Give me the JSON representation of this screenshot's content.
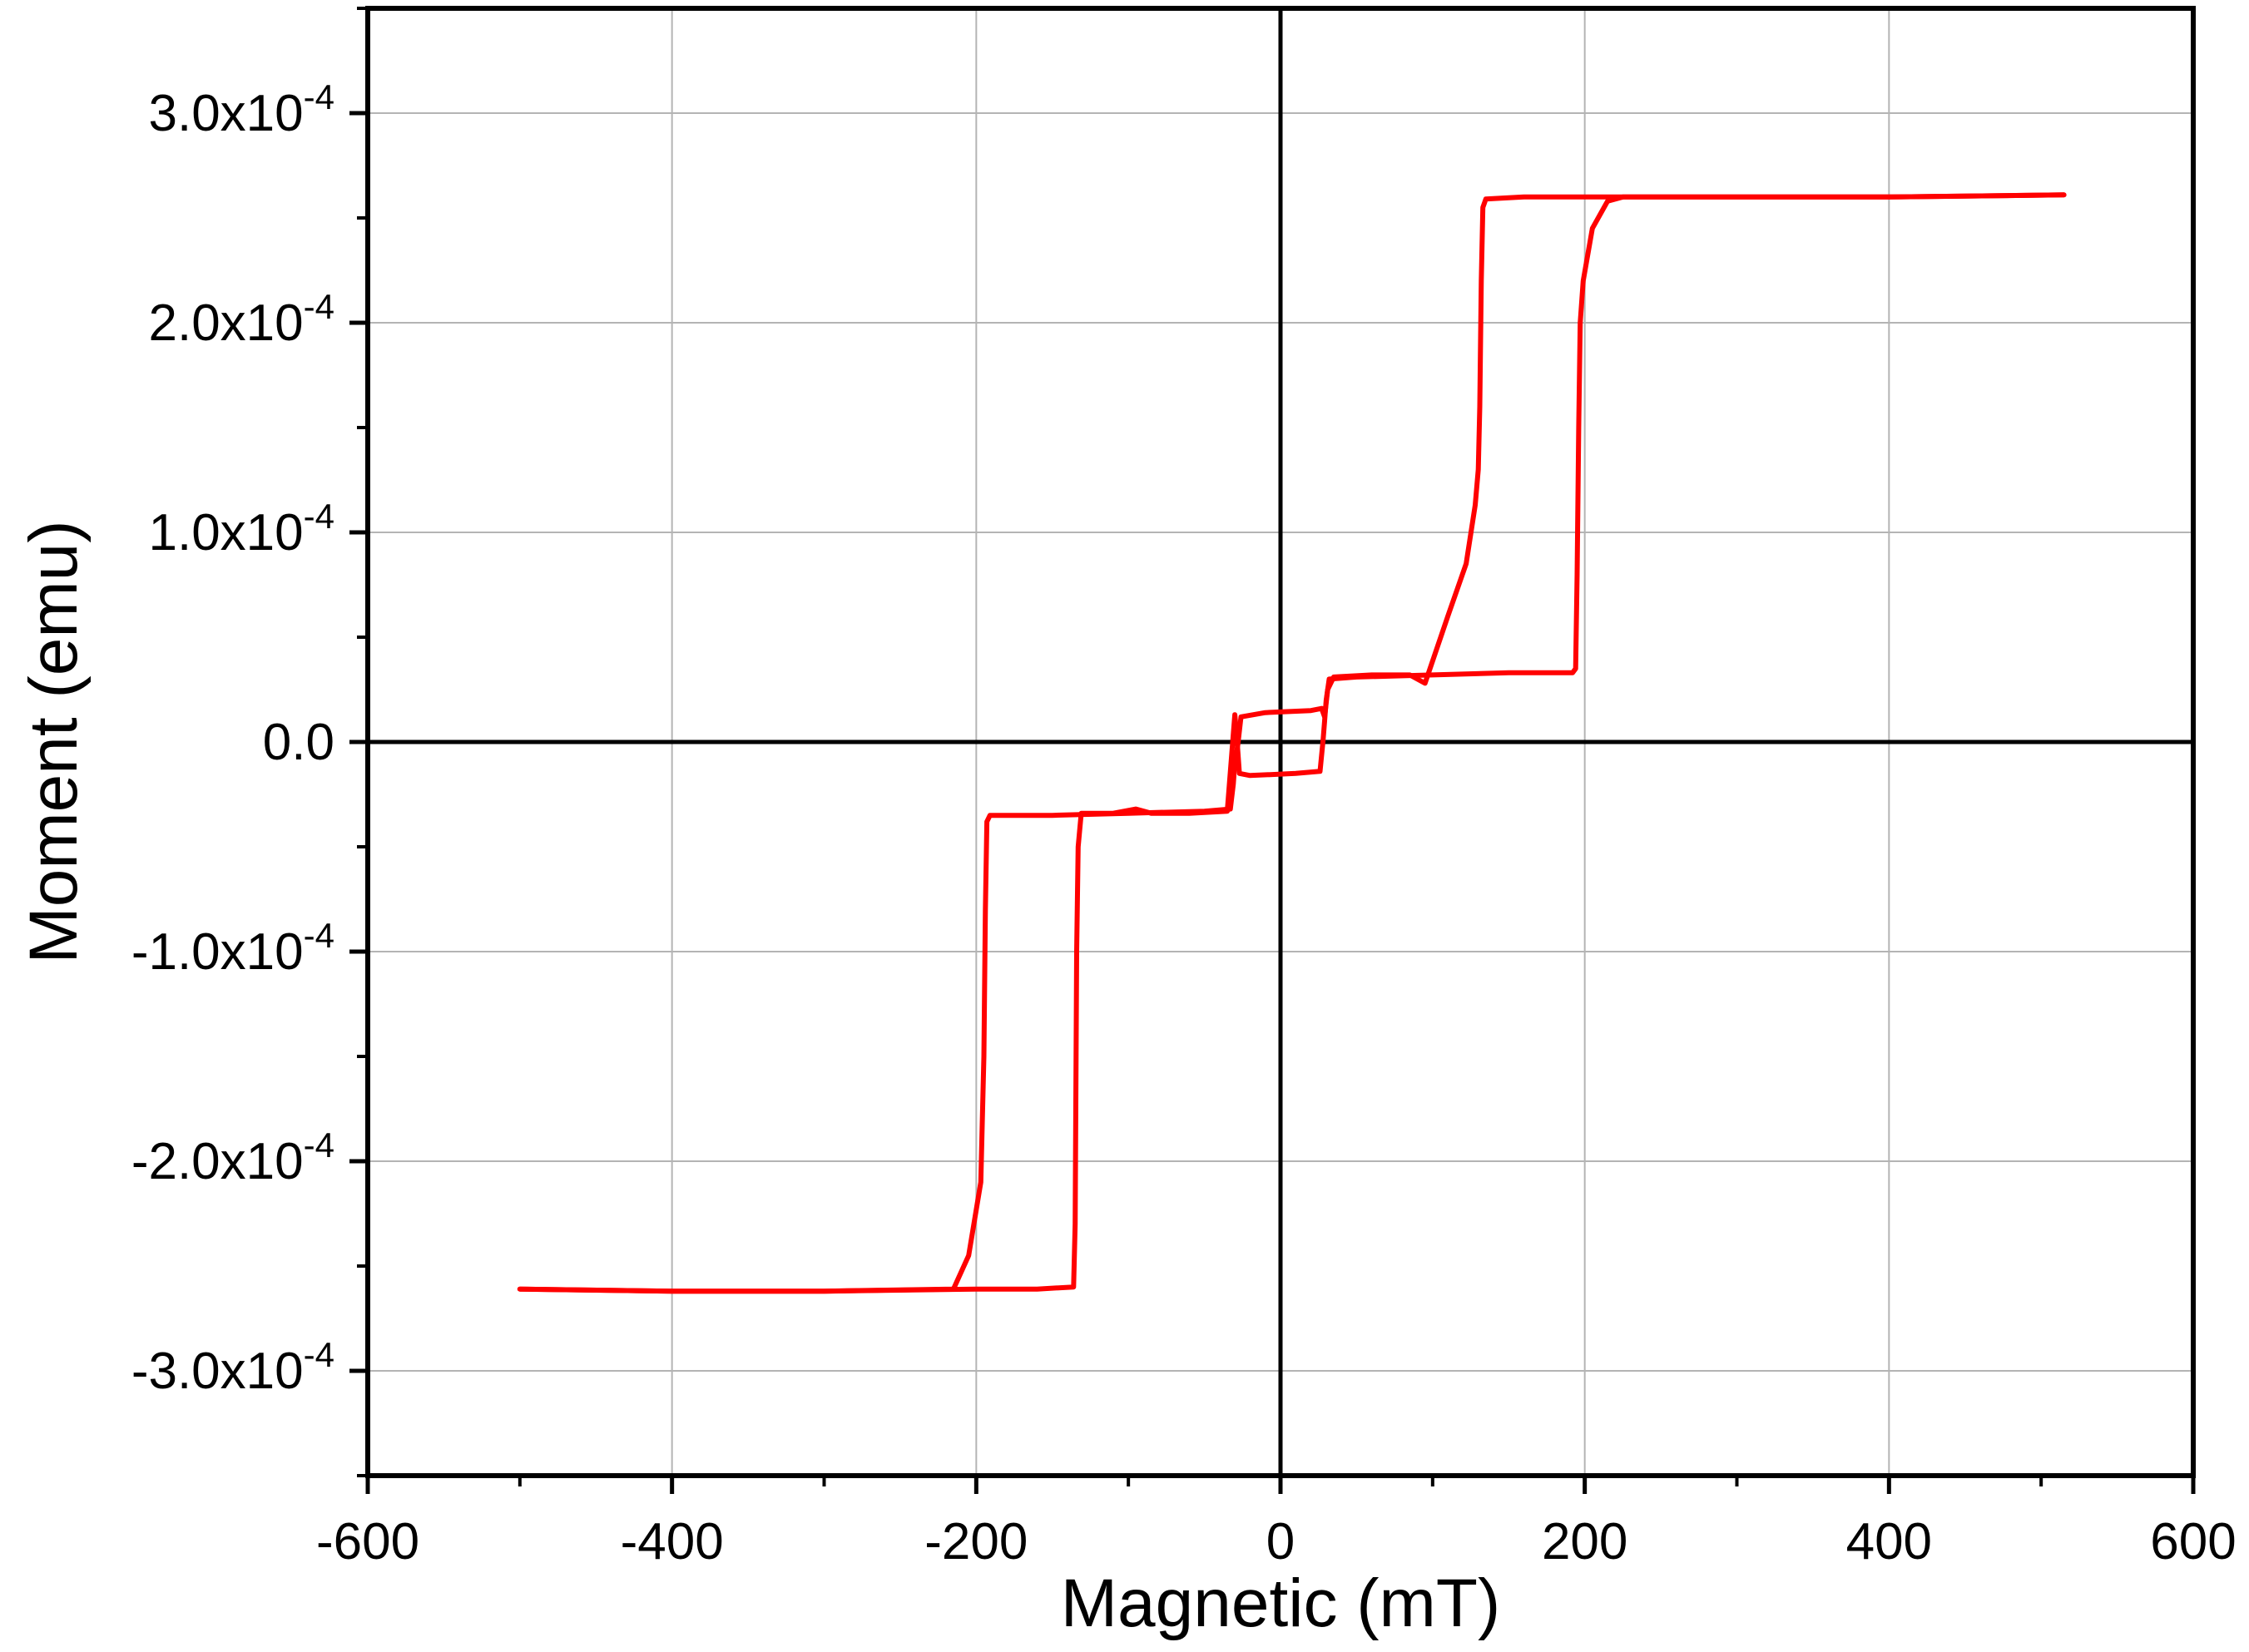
{
  "chart_data": {
    "type": "line",
    "xlabel": "Magnetic (mT)",
    "ylabel": "Moment (emu)",
    "xlim": [
      -600,
      600
    ],
    "ylim": [
      -0.00035,
      0.00035
    ],
    "x_ticks": [
      -600,
      -400,
      -200,
      0,
      200,
      400,
      600
    ],
    "x_tick_labels": [
      "-600",
      "-400",
      "-200",
      "0",
      "200",
      "400",
      "600"
    ],
    "y_ticks": [
      {
        "value": 0.0003,
        "mantissa": "3.0x10",
        "exponent": "-4"
      },
      {
        "value": 0.0002,
        "mantissa": "2.0x10",
        "exponent": "-4"
      },
      {
        "value": 0.0001,
        "mantissa": "1.0x10",
        "exponent": "-4"
      },
      {
        "value": 0,
        "mantissa": "0.0",
        "exponent": ""
      },
      {
        "value": -0.0001,
        "mantissa": "-1.0x10",
        "exponent": "-4"
      },
      {
        "value": -0.0002,
        "mantissa": "-2.0x10",
        "exponent": "-4"
      },
      {
        "value": -0.0003,
        "mantissa": "-3.0x10",
        "exponent": "-4"
      }
    ],
    "grid": true,
    "zero_lines": true,
    "series_color": "#ff0000",
    "series": [
      {
        "x": [
          515,
          400,
          300,
          225,
          215,
          205,
          199,
          197,
          196,
          195,
          194,
          192,
          150,
          100,
          50,
          32,
          30,
          29,
          28,
          26,
          10,
          -20,
          -27,
          -29,
          -30,
          -35,
          -60,
          -85,
          -95,
          -110,
          -122,
          -131,
          -133,
          -134,
          -135,
          -136,
          -160,
          -200,
          -300,
          -400,
          -500
        ],
        "y": [
          0.000261,
          0.00026,
          0.00026,
          0.00026,
          0.000258,
          0.000245,
          0.00022,
          0.0002,
          0.00015,
          8e-05,
          3.5e-05,
          3.3e-05,
          3.3e-05,
          3.2e-05,
          3.1e-05,
          3e-05,
          2e-05,
          1e-05,
          1e-06,
          -1.4e-05,
          -1.5e-05,
          -1.6e-05,
          -1.5e-05,
          5e-06,
          1.3e-05,
          -3.3e-05,
          -3.4e-05,
          -3.4e-05,
          -3.2e-05,
          -3.4e-05,
          -3.4e-05,
          -3.4e-05,
          -5e-05,
          -0.0001,
          -0.00023,
          -0.00026,
          -0.000261,
          -0.000261,
          -0.000262,
          -0.000262,
          -0.000261
        ]
      },
      {
        "x": [
          -500,
          -400,
          -300,
          -215,
          -205,
          -197,
          -195,
          -194,
          -193,
          -191,
          -150,
          -100,
          -50,
          -33,
          -31,
          -30,
          -28,
          -26,
          -10,
          20,
          27,
          29,
          31,
          35,
          60,
          85,
          95,
          110,
          122,
          128,
          130,
          131,
          132,
          133,
          135,
          160,
          200,
          300,
          400,
          515
        ],
        "y": [
          -0.000261,
          -0.000262,
          -0.000262,
          -0.000261,
          -0.000245,
          -0.00021,
          -0.00015,
          -8e-05,
          -3.8e-05,
          -3.5e-05,
          -3.5e-05,
          -3.4e-05,
          -3.3e-05,
          -3.2e-05,
          -2e-05,
          -1e-05,
          -1e-06,
          1.2e-05,
          1.4e-05,
          1.5e-05,
          1.6e-05,
          1.2e-05,
          2.5e-05,
          3.1e-05,
          3.2e-05,
          3.2e-05,
          2.8e-05,
          6e-05,
          8.5e-05,
          0.000113,
          0.00013,
          0.00016,
          0.00022,
          0.000255,
          0.000259,
          0.00026,
          0.00026,
          0.00026,
          0.00026,
          0.000261
        ]
      }
    ]
  }
}
